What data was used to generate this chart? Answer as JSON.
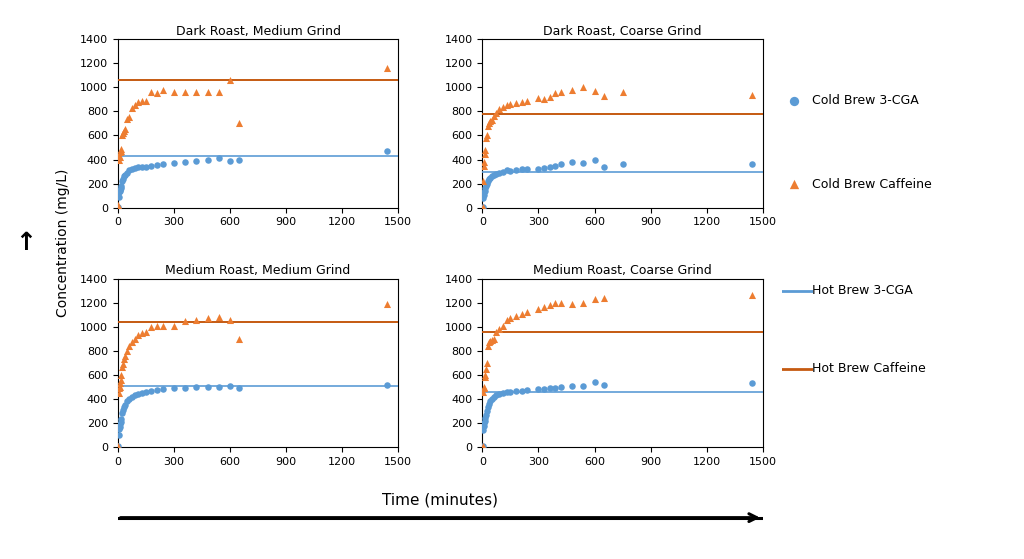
{
  "subplots": [
    {
      "title": "Dark Roast, Medium Grind",
      "hot_brew_3cga": 430,
      "hot_brew_caffeine": 1060,
      "cold_brew_3cga": [
        [
          2,
          10
        ],
        [
          5,
          90
        ],
        [
          8,
          130
        ],
        [
          10,
          140
        ],
        [
          13,
          150
        ],
        [
          16,
          160
        ],
        [
          20,
          180
        ],
        [
          25,
          220
        ],
        [
          30,
          240
        ],
        [
          35,
          260
        ],
        [
          40,
          270
        ],
        [
          50,
          290
        ],
        [
          60,
          310
        ],
        [
          75,
          320
        ],
        [
          90,
          330
        ],
        [
          110,
          340
        ],
        [
          130,
          335
        ],
        [
          150,
          340
        ],
        [
          180,
          350
        ],
        [
          210,
          355
        ],
        [
          240,
          360
        ],
        [
          300,
          370
        ],
        [
          360,
          380
        ],
        [
          420,
          390
        ],
        [
          480,
          400
        ],
        [
          540,
          410
        ],
        [
          600,
          390
        ],
        [
          650,
          400
        ],
        [
          1440,
          470
        ]
      ],
      "cold_brew_caffeine": [
        [
          2,
          20
        ],
        [
          5,
          400
        ],
        [
          8,
          430
        ],
        [
          10,
          420
        ],
        [
          13,
          460
        ],
        [
          16,
          470
        ],
        [
          20,
          490
        ],
        [
          25,
          600
        ],
        [
          30,
          620
        ],
        [
          35,
          640
        ],
        [
          40,
          650
        ],
        [
          50,
          740
        ],
        [
          60,
          750
        ],
        [
          75,
          830
        ],
        [
          90,
          850
        ],
        [
          110,
          880
        ],
        [
          130,
          885
        ],
        [
          150,
          890
        ],
        [
          180,
          960
        ],
        [
          210,
          950
        ],
        [
          240,
          980
        ],
        [
          300,
          960
        ],
        [
          360,
          960
        ],
        [
          420,
          960
        ],
        [
          480,
          960
        ],
        [
          540,
          960
        ],
        [
          600,
          1060
        ],
        [
          650,
          700
        ],
        [
          1440,
          1160
        ]
      ]
    },
    {
      "title": "Dark Roast, Coarse Grind",
      "hot_brew_3cga": 300,
      "hot_brew_caffeine": 775,
      "cold_brew_3cga": [
        [
          2,
          10
        ],
        [
          5,
          80
        ],
        [
          8,
          110
        ],
        [
          10,
          130
        ],
        [
          13,
          140
        ],
        [
          16,
          160
        ],
        [
          20,
          180
        ],
        [
          25,
          200
        ],
        [
          30,
          220
        ],
        [
          35,
          240
        ],
        [
          40,
          250
        ],
        [
          50,
          260
        ],
        [
          60,
          270
        ],
        [
          75,
          280
        ],
        [
          90,
          290
        ],
        [
          110,
          300
        ],
        [
          130,
          310
        ],
        [
          150,
          305
        ],
        [
          180,
          315
        ],
        [
          210,
          320
        ],
        [
          240,
          325
        ],
        [
          300,
          320
        ],
        [
          330,
          330
        ],
        [
          360,
          340
        ],
        [
          390,
          350
        ],
        [
          420,
          360
        ],
        [
          480,
          380
        ],
        [
          540,
          370
        ],
        [
          600,
          400
        ],
        [
          650,
          340
        ],
        [
          750,
          360
        ],
        [
          1440,
          360
        ]
      ],
      "cold_brew_caffeine": [
        [
          2,
          10
        ],
        [
          5,
          220
        ],
        [
          8,
          350
        ],
        [
          10,
          380
        ],
        [
          13,
          450
        ],
        [
          16,
          480
        ],
        [
          20,
          580
        ],
        [
          25,
          600
        ],
        [
          30,
          680
        ],
        [
          35,
          700
        ],
        [
          40,
          720
        ],
        [
          50,
          730
        ],
        [
          60,
          760
        ],
        [
          75,
          790
        ],
        [
          90,
          820
        ],
        [
          110,
          840
        ],
        [
          130,
          850
        ],
        [
          150,
          860
        ],
        [
          180,
          870
        ],
        [
          210,
          880
        ],
        [
          240,
          890
        ],
        [
          300,
          910
        ],
        [
          330,
          900
        ],
        [
          360,
          920
        ],
        [
          390,
          950
        ],
        [
          420,
          960
        ],
        [
          480,
          980
        ],
        [
          540,
          1000
        ],
        [
          600,
          970
        ],
        [
          650,
          930
        ],
        [
          750,
          960
        ],
        [
          1440,
          940
        ]
      ]
    },
    {
      "title": "Medium Roast, Medium Grind",
      "hot_brew_3cga": 510,
      "hot_brew_caffeine": 1040,
      "cold_brew_3cga": [
        [
          2,
          10
        ],
        [
          5,
          100
        ],
        [
          8,
          150
        ],
        [
          10,
          170
        ],
        [
          13,
          190
        ],
        [
          16,
          210
        ],
        [
          20,
          230
        ],
        [
          25,
          280
        ],
        [
          30,
          310
        ],
        [
          35,
          330
        ],
        [
          40,
          350
        ],
        [
          50,
          380
        ],
        [
          60,
          400
        ],
        [
          75,
          420
        ],
        [
          90,
          430
        ],
        [
          110,
          440
        ],
        [
          130,
          450
        ],
        [
          150,
          460
        ],
        [
          180,
          465
        ],
        [
          210,
          475
        ],
        [
          240,
          480
        ],
        [
          300,
          490
        ],
        [
          360,
          490
        ],
        [
          420,
          500
        ],
        [
          480,
          500
        ],
        [
          540,
          500
        ],
        [
          600,
          510
        ],
        [
          650,
          490
        ],
        [
          1440,
          520
        ]
      ],
      "cold_brew_caffeine": [
        [
          2,
          10
        ],
        [
          5,
          450
        ],
        [
          8,
          490
        ],
        [
          10,
          500
        ],
        [
          13,
          530
        ],
        [
          16,
          560
        ],
        [
          20,
          600
        ],
        [
          25,
          670
        ],
        [
          30,
          690
        ],
        [
          35,
          730
        ],
        [
          40,
          760
        ],
        [
          50,
          800
        ],
        [
          60,
          840
        ],
        [
          75,
          870
        ],
        [
          90,
          900
        ],
        [
          110,
          930
        ],
        [
          130,
          950
        ],
        [
          150,
          960
        ],
        [
          180,
          1000
        ],
        [
          210,
          1010
        ],
        [
          240,
          1010
        ],
        [
          300,
          1010
        ],
        [
          360,
          1050
        ],
        [
          420,
          1060
        ],
        [
          480,
          1070
        ],
        [
          540,
          1080
        ],
        [
          600,
          1060
        ],
        [
          650,
          900
        ],
        [
          1440,
          1190
        ]
      ]
    },
    {
      "title": "Medium Roast, Coarse Grind",
      "hot_brew_3cga": 460,
      "hot_brew_caffeine": 960,
      "cold_brew_3cga": [
        [
          2,
          10
        ],
        [
          5,
          140
        ],
        [
          8,
          180
        ],
        [
          10,
          200
        ],
        [
          13,
          220
        ],
        [
          16,
          240
        ],
        [
          20,
          270
        ],
        [
          25,
          300
        ],
        [
          30,
          330
        ],
        [
          35,
          360
        ],
        [
          40,
          380
        ],
        [
          50,
          400
        ],
        [
          60,
          420
        ],
        [
          75,
          435
        ],
        [
          90,
          440
        ],
        [
          110,
          450
        ],
        [
          130,
          455
        ],
        [
          150,
          460
        ],
        [
          180,
          465
        ],
        [
          210,
          470
        ],
        [
          240,
          475
        ],
        [
          300,
          480
        ],
        [
          330,
          480
        ],
        [
          360,
          490
        ],
        [
          390,
          490
        ],
        [
          420,
          500
        ],
        [
          480,
          510
        ],
        [
          540,
          510
        ],
        [
          600,
          540
        ],
        [
          650,
          520
        ],
        [
          1440,
          530
        ]
      ],
      "cold_brew_caffeine": [
        [
          2,
          10
        ],
        [
          5,
          460
        ],
        [
          8,
          490
        ],
        [
          10,
          500
        ],
        [
          13,
          580
        ],
        [
          16,
          600
        ],
        [
          20,
          650
        ],
        [
          25,
          700
        ],
        [
          30,
          840
        ],
        [
          35,
          870
        ],
        [
          40,
          880
        ],
        [
          50,
          890
        ],
        [
          60,
          900
        ],
        [
          75,
          960
        ],
        [
          90,
          980
        ],
        [
          110,
          1010
        ],
        [
          130,
          1060
        ],
        [
          150,
          1070
        ],
        [
          180,
          1090
        ],
        [
          210,
          1110
        ],
        [
          240,
          1120
        ],
        [
          300,
          1150
        ],
        [
          330,
          1160
        ],
        [
          360,
          1180
        ],
        [
          390,
          1200
        ],
        [
          420,
          1200
        ],
        [
          480,
          1190
        ],
        [
          540,
          1200
        ],
        [
          600,
          1230
        ],
        [
          650,
          1240
        ],
        [
          1440,
          1260
        ]
      ]
    }
  ],
  "cold_brew_3cga_color": "#5b9bd5",
  "cold_brew_caffeine_color": "#ed7d31",
  "hot_brew_3cga_color": "#5b9bd5",
  "hot_brew_caffeine_color": "#c55a11",
  "ylim": [
    0,
    1400
  ],
  "xlim": [
    0,
    1500
  ],
  "yticks": [
    0,
    200,
    400,
    600,
    800,
    1000,
    1200,
    1400
  ],
  "xticks": [
    0,
    300,
    600,
    900,
    1200,
    1500
  ],
  "ylabel": "Concentration (mg/L)",
  "xlabel": "Time (minutes)",
  "legend_labels": [
    "Cold Brew 3-CGA",
    "Cold Brew Caffeine",
    "Hot Brew 3-CGA",
    "Hot Brew Caffeine"
  ],
  "title_fontsize": 9,
  "tick_fontsize": 8,
  "label_fontsize": 10
}
